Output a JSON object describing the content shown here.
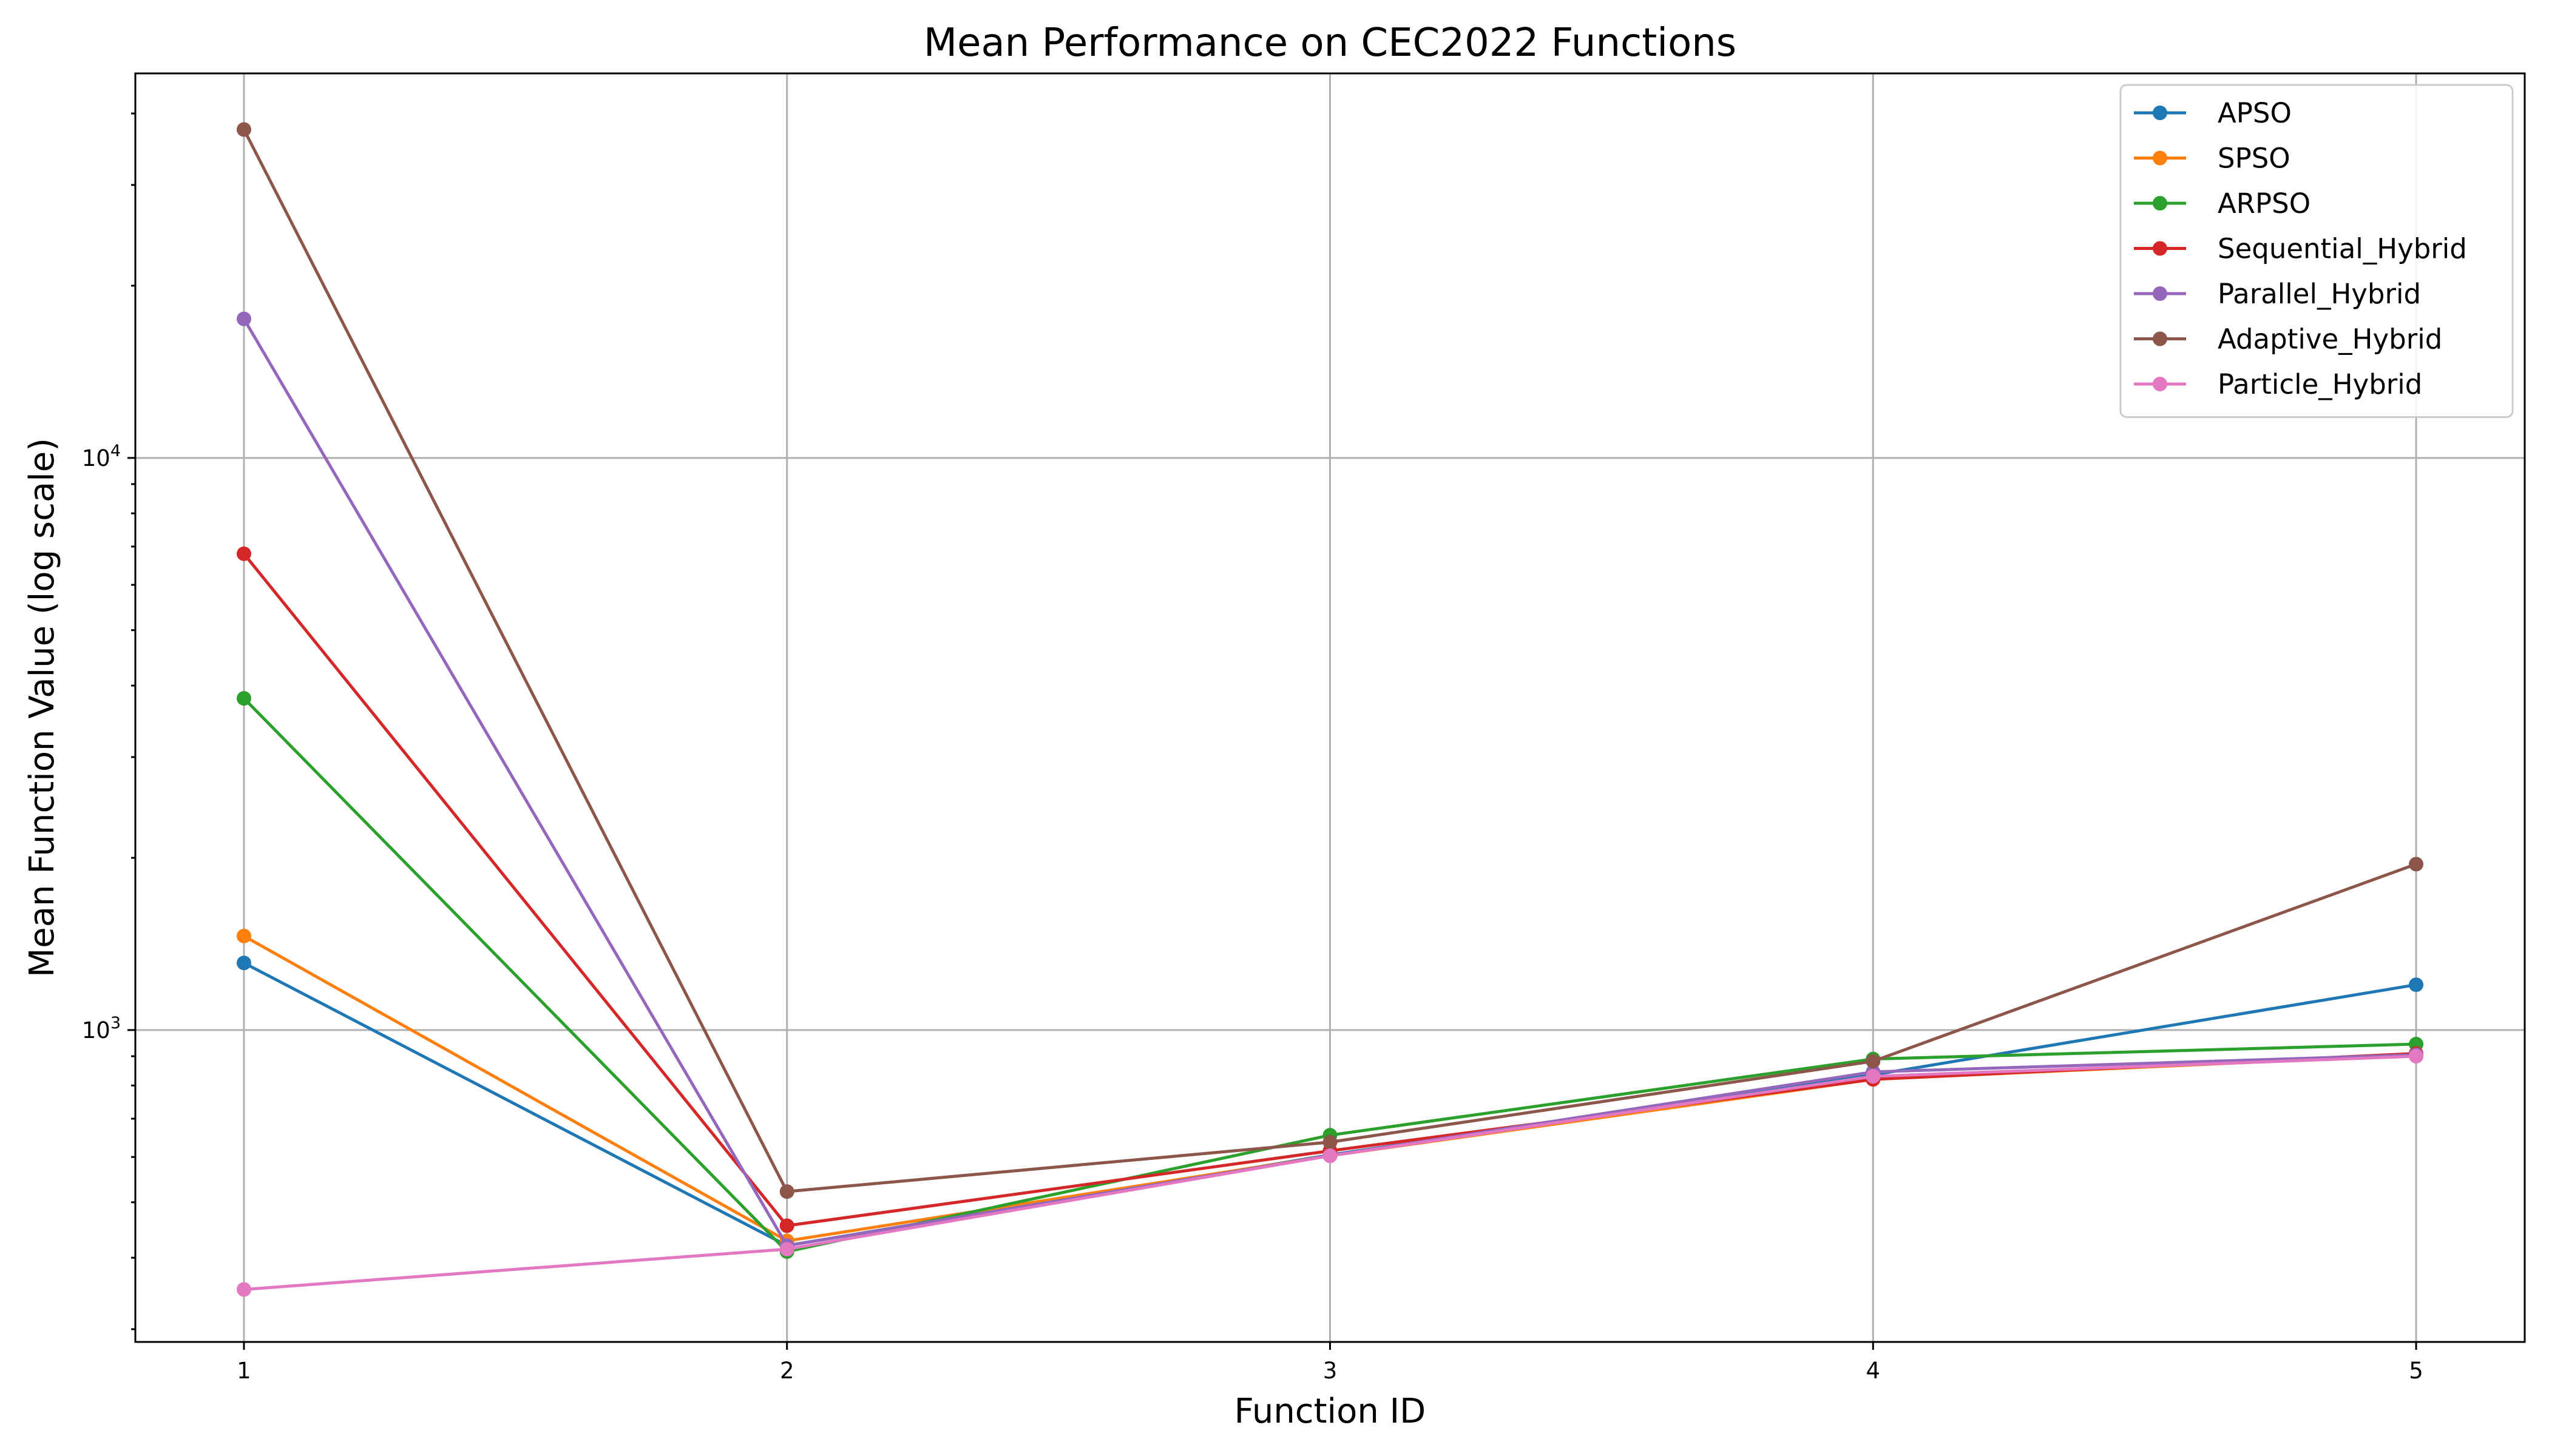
{
  "chart_data": {
    "type": "line",
    "title": "Mean Performance on CEC2022 Functions",
    "xlabel": "Function ID",
    "ylabel": "Mean Function Value (log scale)",
    "yscale": "log",
    "xlim": [
      0.8,
      5.2
    ],
    "ylim": [
      285,
      47000
    ],
    "grid": true,
    "legend_position": "upper-right",
    "x": [
      1,
      2,
      3,
      4,
      5
    ],
    "x_ticks": [
      {
        "value": 1,
        "label": "1"
      },
      {
        "value": 2,
        "label": "2"
      },
      {
        "value": 3,
        "label": "3"
      },
      {
        "value": 4,
        "label": "4"
      },
      {
        "value": 5,
        "label": "5"
      }
    ],
    "y_ticks": [
      {
        "value": 1000,
        "base": "10",
        "exp": "3"
      },
      {
        "value": 10000,
        "base": "10",
        "exp": "4"
      }
    ],
    "series": [
      {
        "name": "APSO",
        "color": "#1f77b4",
        "values": [
          1310,
          420,
          605,
          835,
          1200
        ]
      },
      {
        "name": "SPSO",
        "color": "#ff7f0e",
        "values": [
          1460,
          428,
          603,
          820,
          905
        ]
      },
      {
        "name": "ARPSO",
        "color": "#2ca02c",
        "values": [
          3800,
          410,
          655,
          890,
          945
        ]
      },
      {
        "name": "Sequential_Hybrid",
        "color": "#d62728",
        "values": [
          6800,
          455,
          615,
          820,
          910
        ]
      },
      {
        "name": "Parallel_Hybrid",
        "color": "#9467bd",
        "values": [
          17500,
          420,
          603,
          845,
          905
        ]
      },
      {
        "name": "Adaptive_Hybrid",
        "color": "#8c564b",
        "values": [
          37500,
          522,
          637,
          882,
          1950
        ]
      },
      {
        "name": "Particle_Hybrid",
        "color": "#e377c2",
        "values": [
          352,
          414,
          603,
          830,
          900
        ]
      }
    ]
  }
}
